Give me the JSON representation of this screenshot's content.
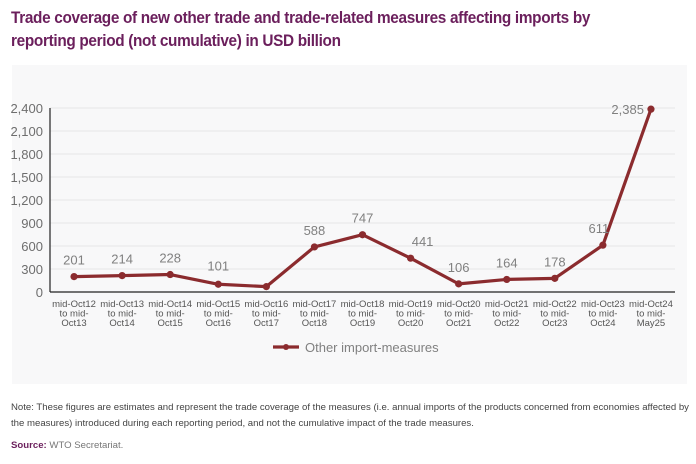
{
  "title": "Trade coverage of new other trade and trade-related measures affecting imports by reporting period (not cumulative) in USD billion",
  "note": "Note: These figures are estimates and represent the trade coverage of the measures (i.e. annual imports of the products concerned from economies affected by the measures) introduced during each reporting period, and not the cumulative impact of the trade measures.",
  "source_label": "Source:",
  "source_text": "WTO Secretariat.",
  "colors": {
    "title": "#6b1f5c",
    "series": "#8b2b2e",
    "grid": "#e6e6e8",
    "panel": "#f8f8f9"
  },
  "chart_data": {
    "type": "line",
    "title": "Trade coverage of new other trade and trade-related measures affecting imports by reporting period (not cumulative) in USD billion",
    "xlabel": "",
    "ylabel": "",
    "ylim": [
      0,
      2400
    ],
    "yticks": [
      0,
      300,
      600,
      900,
      1200,
      1500,
      1800,
      2100,
      2400
    ],
    "ytick_labels": [
      "0",
      "300",
      "600",
      "900",
      "1,200",
      "1,500",
      "1,800",
      "2,100",
      "2,400"
    ],
    "grid": true,
    "legend_position": "bottom-center",
    "categories": [
      [
        "mid-Oct12",
        "to mid-",
        "Oct13"
      ],
      [
        "mid-Oct13",
        "to mid-",
        "Oct14"
      ],
      [
        "mid-Oct14",
        "to mid-",
        "Oct15"
      ],
      [
        "mid-Oct15",
        "to mid-",
        "Oct16"
      ],
      [
        "mid-Oct16",
        "to mid-",
        "Oct17"
      ],
      [
        "mid-Oct17",
        "to mid-",
        "Oct18"
      ],
      [
        "mid-Oct18",
        "to mid-",
        "Oct19"
      ],
      [
        "mid-Oct19",
        "to mid-",
        "Oct20"
      ],
      [
        "mid-Oct20",
        "to mid-",
        "Oct21"
      ],
      [
        "mid-Oct21",
        "to mid-",
        "Oct22"
      ],
      [
        "mid-Oct22",
        "to mid-",
        "Oct23"
      ],
      [
        "mid-Oct23",
        "to mid-",
        "Oct24"
      ],
      [
        "mid-Oct24",
        "to mid-",
        "May25"
      ]
    ],
    "series": [
      {
        "name": "Other import-measures",
        "values": [
          201,
          214,
          228,
          101,
          70,
          588,
          747,
          441,
          106,
          164,
          178,
          611,
          2385
        ],
        "data_labels": [
          "201",
          "214",
          "228",
          "101",
          "",
          "588",
          "747",
          "441",
          "106",
          "164",
          "178",
          "611",
          "2,385"
        ]
      }
    ]
  }
}
